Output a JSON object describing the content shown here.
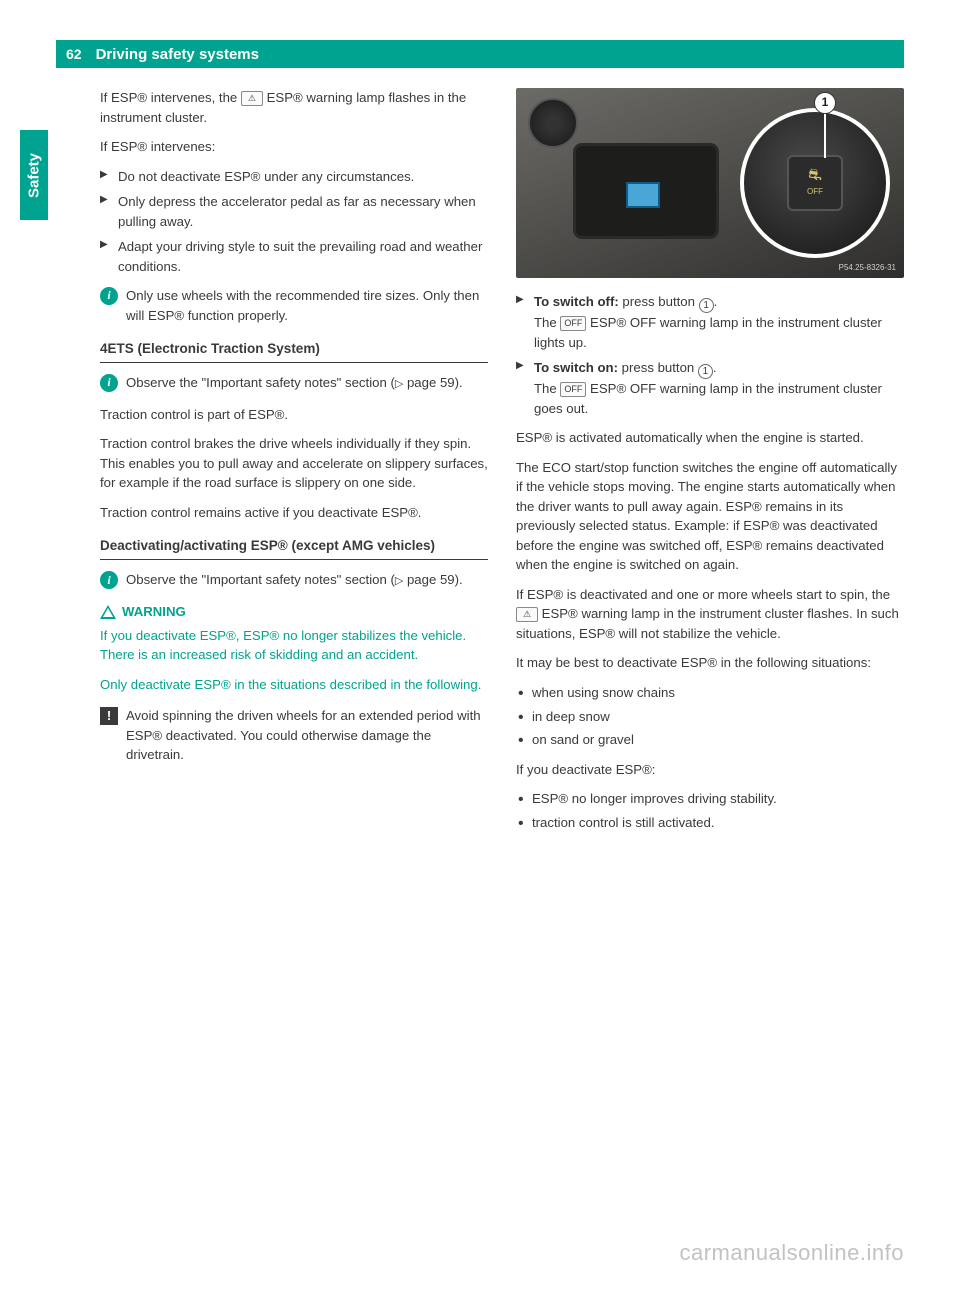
{
  "page_number": "62",
  "chapter": "Driving safety systems",
  "side_tab": "Safety",
  "watermark": "carmanualsonline.info",
  "glyphs": {
    "esp_lamp": "⚠",
    "esp_off": "OFF",
    "tri": "▷",
    "circ1": "1"
  },
  "left": {
    "p1a": "If ESP® intervenes, the ",
    "p1b": " ESP® warning lamp flashes in the instrument cluster.",
    "p2": "If ESP® intervenes:",
    "bl1": "Do not deactivate ESP® under any circumstances.",
    "bl2": "Only depress the accelerator pedal as far as necessary when pulling away.",
    "bl3": "Adapt your driving style to suit the prevailing road and weather conditions.",
    "info1": "Only use wheels with the recommended tire sizes. Only then will ESP® function properly.",
    "h1": "4ETS (Electronic Traction System)",
    "info2a": "Observe the \"Important safety notes\" section (",
    "info2b": " page 59).",
    "p3": "Traction control is part of ESP®.",
    "p4": "Traction control brakes the drive wheels individually if they spin. This enables you to pull away and accelerate on slippery surfaces, for example if the road surface is slippery on one side.",
    "p5": "Traction control remains active if you deactivate ESP®.",
    "h2": "Deactivating/activating ESP® (except AMG vehicles)",
    "info3a": "Observe the \"Important safety notes\" section (",
    "info3b": " page 59).",
    "warn_label": "WARNING",
    "warn1": "If you deactivate ESP®, ESP® no longer stabilizes the vehicle. There is an increased risk of skidding and an accident.",
    "warn2": "Only deactivate ESP® in the situations described in the following.",
    "caution1": "Avoid spinning the driven wheels for an extended period with ESP® deactivated. You could otherwise damage the drivetrain."
  },
  "right": {
    "fig_button_label": "OFF",
    "fig_code": "P54.25-8326-31",
    "fig_callout": "1",
    "off1a": "To switch off:",
    "off1b": " press button ",
    "off1c": ".",
    "off2a": "The ",
    "off2b": " ESP® OFF warning lamp in the instrument cluster lights up.",
    "on1a": "To switch on:",
    "on1b": " press button ",
    "on1c": ".",
    "on2a": "The ",
    "on2b": " ESP® OFF warning lamp in the instrument cluster goes out.",
    "p1": "ESP® is activated automatically when the engine is started.",
    "p2": "The ECO start/stop function switches the engine off automatically if the vehicle stops moving. The engine starts automatically when the driver wants to pull away again. ESP® remains in its previously selected status. Example: if ESP® was deactivated before the engine was switched off, ESP® remains deactivated when the engine is switched on again.",
    "p3a": "If ESP® is deactivated and one or more wheels start to spin, the ",
    "p3b": " ESP® warning lamp in the instrument cluster flashes. In such situations, ESP® will not stabilize the vehicle.",
    "p4": "It may be best to deactivate ESP® in the following situations:",
    "d1": "when using snow chains",
    "d2": "in deep snow",
    "d3": "on sand or gravel",
    "p5": "If you deactivate ESP®:",
    "d4": "ESP® no longer improves driving stability.",
    "d5": "traction control is still activated."
  },
  "colors": {
    "accent": "#00a38f",
    "text": "#3a3a3a",
    "bg": "#ffffff"
  }
}
